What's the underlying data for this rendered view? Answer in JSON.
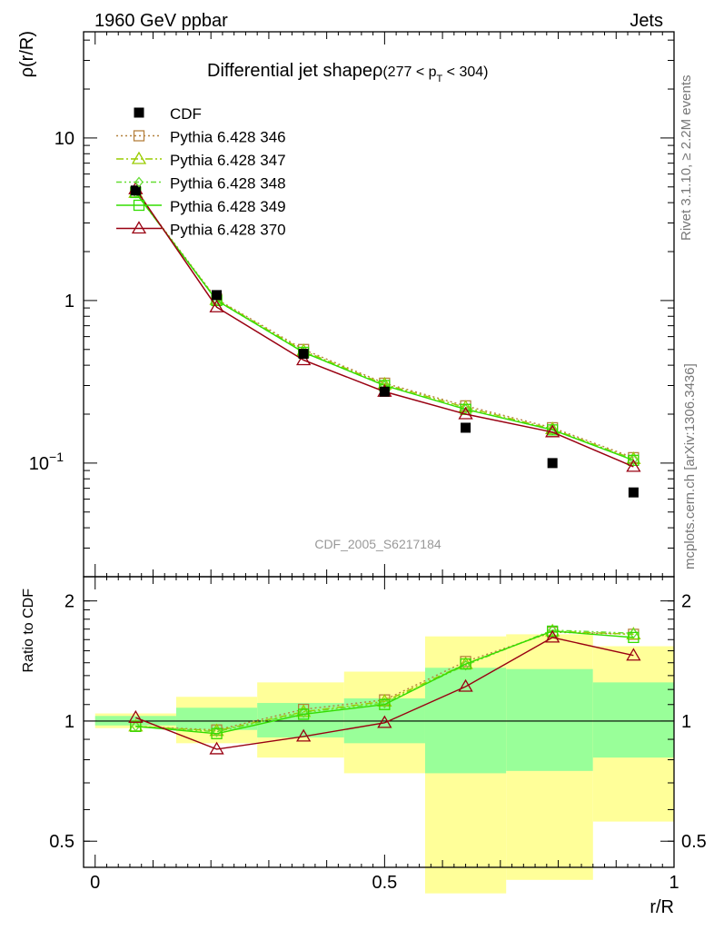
{
  "header": {
    "left": "1960 GeV ppbar",
    "right": "Jets",
    "side_top": "Rivet 3.1.10, ≥ 2.2M events",
    "side_bottom": "mcplots.cern.ch [arXiv:1306.3436]",
    "watermark": "CDF_2005_S6217184"
  },
  "chart_data": [
    {
      "type": "line",
      "title": "Differential jet shapeρ",
      "title_cut": "(277 < p",
      "title_cut_sub": "T",
      "title_cut_end": " < 304)",
      "ylabel": "ρ(r/R)",
      "yscale": "log",
      "ylim": [
        0.02,
        45
      ],
      "xlim": [
        -0.02,
        1.0
      ],
      "yticks": [
        {
          "value": 10,
          "label": "10"
        },
        {
          "value": 1,
          "label": "1"
        },
        {
          "value": 0.1,
          "label": "10",
          "exp": "−1"
        }
      ],
      "x": [
        0.07,
        0.21,
        0.36,
        0.5,
        0.64,
        0.79,
        0.93
      ],
      "data": {
        "name": "CDF",
        "values": [
          4.75,
          1.08,
          0.47,
          0.275,
          0.165,
          0.1,
          0.066
        ]
      },
      "series": [
        {
          "name": "Pythia 6.428 346",
          "color": "#b5813f",
          "dash": "2,3",
          "marker": "square",
          "values": [
            4.65,
            1.02,
            0.5,
            0.31,
            0.225,
            0.165,
            0.108
          ]
        },
        {
          "name": "Pythia 6.428 347",
          "color": "#99cc00",
          "dash": "8,3,2,3",
          "marker": "triangle",
          "values": [
            4.6,
            1.01,
            0.49,
            0.305,
            0.22,
            0.162,
            0.106
          ]
        },
        {
          "name": "Pythia 6.428 348",
          "color": "#66dd33",
          "dash": "6,3,2,3,2,3",
          "marker": "diamond",
          "values": [
            4.6,
            1.0,
            0.48,
            0.3,
            0.215,
            0.16,
            0.105
          ]
        },
        {
          "name": "Pythia 6.428 349",
          "color": "#33dd00",
          "dash": "",
          "marker": "square",
          "values": [
            4.62,
            1.0,
            0.48,
            0.3,
            0.214,
            0.16,
            0.104
          ]
        },
        {
          "name": "Pythia 6.428 370",
          "color": "#990011",
          "dash": "",
          "marker": "triangle",
          "values": [
            4.85,
            0.91,
            0.43,
            0.275,
            0.2,
            0.155,
            0.095
          ]
        }
      ]
    },
    {
      "type": "line",
      "ylabel": "Ratio to CDF",
      "xlabel": "r/R",
      "yscale": "log",
      "ylim": [
        0.43,
        2.3
      ],
      "xlim": [
        -0.02,
        1.0
      ],
      "yticks": [
        {
          "value": 2,
          "label": "2"
        },
        {
          "value": 1,
          "label": "1"
        },
        {
          "value": 0.5,
          "label": "0.5"
        }
      ],
      "xticks": [
        {
          "value": 0,
          "label": "0"
        },
        {
          "value": 0.5,
          "label": "0.5"
        },
        {
          "value": 1,
          "label": "1"
        }
      ],
      "bins": [
        {
          "lo": 0.0,
          "hi": 0.14,
          "stat": [
            0.975,
            1.03
          ],
          "total": [
            0.96,
            1.045
          ]
        },
        {
          "lo": 0.14,
          "hi": 0.28,
          "stat": [
            0.95,
            1.08
          ],
          "total": [
            0.88,
            1.15
          ]
        },
        {
          "lo": 0.28,
          "hi": 0.43,
          "stat": [
            0.91,
            1.11
          ],
          "total": [
            0.81,
            1.25
          ]
        },
        {
          "lo": 0.43,
          "hi": 0.57,
          "stat": [
            0.88,
            1.14
          ],
          "total": [
            0.74,
            1.33
          ]
        },
        {
          "lo": 0.57,
          "hi": 0.71,
          "stat": [
            0.74,
            1.36
          ],
          "total": [
            0.37,
            1.63
          ]
        },
        {
          "lo": 0.71,
          "hi": 0.86,
          "stat": [
            0.75,
            1.35
          ],
          "total": [
            0.4,
            1.65
          ]
        },
        {
          "lo": 0.86,
          "hi": 1.0,
          "stat": [
            0.81,
            1.25
          ],
          "total": [
            0.56,
            1.54
          ]
        }
      ],
      "x": [
        0.07,
        0.21,
        0.36,
        0.5,
        0.64,
        0.79,
        0.93
      ],
      "series": [
        {
          "name": "Pythia 6.428 346",
          "values": [
            0.97,
            0.95,
            1.07,
            1.13,
            1.41,
            1.67,
            1.65
          ]
        },
        {
          "name": "Pythia 6.428 347",
          "values": [
            0.97,
            0.945,
            1.055,
            1.12,
            1.39,
            1.68,
            1.65
          ]
        },
        {
          "name": "Pythia 6.428 348",
          "values": [
            0.97,
            0.94,
            1.05,
            1.11,
            1.38,
            1.69,
            1.66
          ]
        },
        {
          "name": "Pythia 6.428 349",
          "values": [
            0.97,
            0.93,
            1.04,
            1.1,
            1.39,
            1.68,
            1.62
          ]
        },
        {
          "name": "Pythia 6.428 370",
          "values": [
            1.02,
            0.85,
            0.915,
            0.99,
            1.22,
            1.62,
            1.46
          ]
        }
      ]
    }
  ]
}
